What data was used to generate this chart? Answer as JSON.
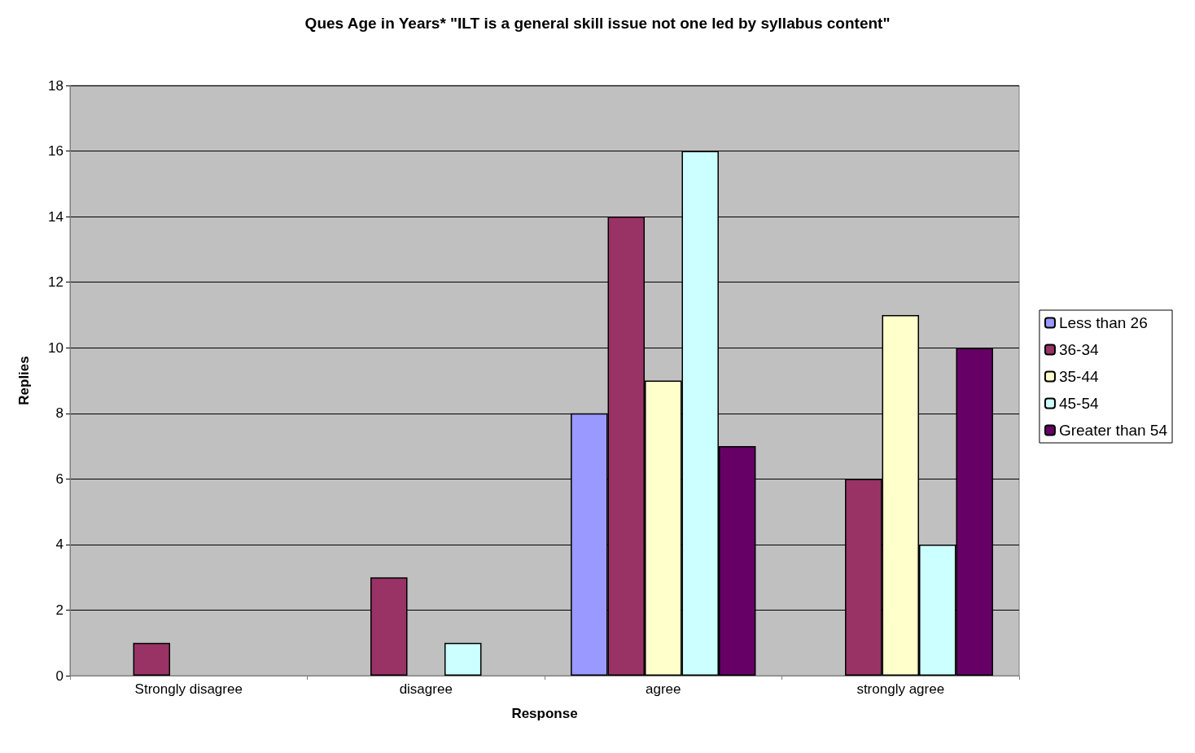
{
  "chart_data": {
    "type": "bar",
    "title": "Ques Age in Years* \"ILT is a general skill issue not one led by syllabus content\"",
    "xlabel": "Response",
    "ylabel": "Replies",
    "categories": [
      "Strongly disagree",
      "disagree",
      "agree",
      "strongly agree"
    ],
    "series": [
      {
        "name": "Less than 26",
        "color": "#9999ff",
        "values": [
          0,
          0,
          8,
          0
        ]
      },
      {
        "name": "36-34",
        "color": "#993366",
        "values": [
          1,
          3,
          14,
          6
        ]
      },
      {
        "name": "35-44",
        "color": "#ffffcc",
        "values": [
          0,
          0,
          9,
          11
        ]
      },
      {
        "name": "45-54",
        "color": "#ccffff",
        "values": [
          0,
          1,
          16,
          4
        ]
      },
      {
        "name": "Greater than 54",
        "color": "#660066",
        "values": [
          0,
          0,
          7,
          10
        ]
      }
    ],
    "ylim": [
      0,
      18
    ],
    "yticks": [
      0,
      2,
      4,
      6,
      8,
      10,
      12,
      14,
      16,
      18
    ],
    "grid": "y",
    "legend": "right"
  }
}
